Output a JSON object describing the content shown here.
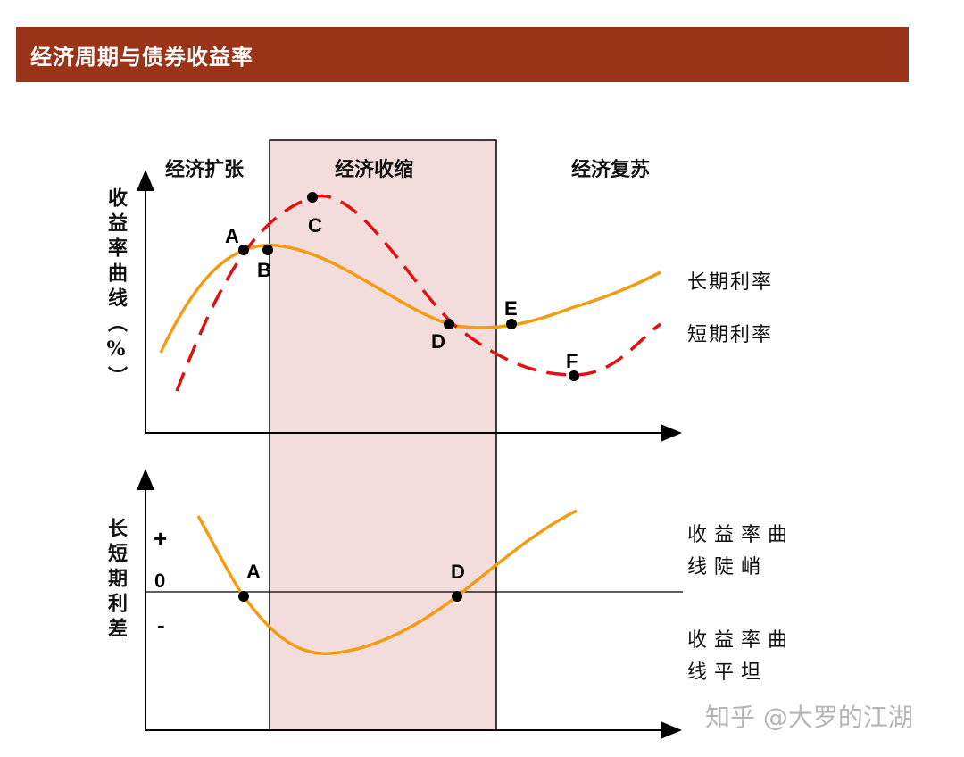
{
  "header": {
    "title": "经济周期与债券收益率"
  },
  "phases": [
    "经济扩张",
    "经济收缩",
    "经济复苏"
  ],
  "top_chart": {
    "y_label": "收益率曲线（%）",
    "points": [
      "A",
      "B",
      "C",
      "D",
      "E",
      "F"
    ],
    "legend": [
      "长期利率",
      "短期利率"
    ]
  },
  "bottom_chart": {
    "y_label": "长短期利差",
    "signs": [
      "+",
      "0",
      "-"
    ],
    "points": [
      "A",
      "D"
    ],
    "notes": [
      "收益率曲线陡峭",
      "收益率曲线平坦"
    ]
  },
  "watermark": "知乎 @大罗的江湖"
}
